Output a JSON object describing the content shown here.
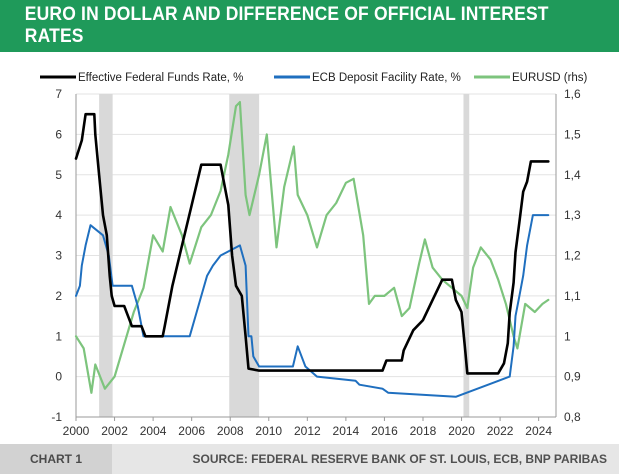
{
  "header": {
    "title": "EURO IN DOLLAR AND DIFFERENCE OF OFFICIAL INTEREST RATES"
  },
  "footer": {
    "label": "CHART 1",
    "source": "SOURCE: FEDERAL RESERVE BANK OF ST. LOUIS, ECB, BNP PARIBAS"
  },
  "colors": {
    "fed": "#000000",
    "ecb": "#1f6fbf",
    "eurusd": "#7dc47d",
    "recession": "#d9d9d9",
    "header_bg": "#1f9a5a"
  },
  "chart_data": {
    "type": "line",
    "title": "EURO IN DOLLAR AND DIFFERENCE OF OFFICIAL INTEREST RATES",
    "xlim": [
      2000,
      2024.9
    ],
    "ylim": [
      -1,
      7
    ],
    "y2lim": [
      0.8,
      1.6
    ],
    "x_ticks": [
      2000,
      2002,
      2004,
      2006,
      2008,
      2010,
      2012,
      2014,
      2016,
      2018,
      2020,
      2022,
      2024
    ],
    "x_tick_labels": [
      "2000",
      "2002",
      "2004",
      "2006",
      "2008",
      "2010",
      "2012",
      "2014",
      "2016",
      "2018",
      "2020",
      "2022",
      "2024"
    ],
    "y_ticks": [
      -1,
      0,
      1,
      2,
      3,
      4,
      5,
      6,
      7
    ],
    "y_tick_labels": [
      "-1",
      "0",
      "1",
      "2",
      "3",
      "4",
      "5",
      "6",
      "7"
    ],
    "y2_ticks": [
      0.8,
      0.9,
      1.0,
      1.1,
      1.2,
      1.3,
      1.4,
      1.5,
      1.6
    ],
    "y2_tick_labels": [
      "0,8",
      "0,9",
      "1",
      "1,1",
      "1,2",
      "1,3",
      "1,4",
      "1,5",
      "1,6"
    ],
    "legend_position": "top",
    "recessions": [
      [
        2001.2,
        2001.9
      ],
      [
        2007.95,
        2009.5
      ],
      [
        2020.1,
        2020.4
      ]
    ],
    "series": [
      {
        "name": "Effective Federal Funds Rate, %",
        "axis": "left",
        "x": [
          2000.0,
          2000.3,
          2000.5,
          2000.95,
          2001.0,
          2001.2,
          2001.4,
          2001.6,
          2001.75,
          2001.85,
          2002.0,
          2002.5,
          2002.9,
          2003.4,
          2003.6,
          2004.0,
          2004.5,
          2004.6,
          2005.0,
          2005.5,
          2006.0,
          2006.5,
          2007.0,
          2007.5,
          2007.7,
          2007.9,
          2008.1,
          2008.3,
          2008.6,
          2008.8,
          2008.95,
          2009.5,
          2015.9,
          2016.1,
          2016.9,
          2017.0,
          2017.5,
          2018.0,
          2018.5,
          2019.0,
          2019.5,
          2019.7,
          2020.0,
          2020.2,
          2020.3,
          2021.9,
          2022.2,
          2022.4,
          2022.5,
          2022.7,
          2022.8,
          2023.0,
          2023.2,
          2023.4,
          2023.6,
          2024.5
        ],
        "values": [
          5.4,
          5.85,
          6.5,
          6.5,
          6.0,
          5.0,
          4.0,
          3.5,
          2.5,
          2.0,
          1.75,
          1.75,
          1.25,
          1.25,
          1.0,
          1.0,
          1.0,
          1.25,
          2.25,
          3.25,
          4.25,
          5.25,
          5.25,
          5.25,
          4.75,
          4.25,
          3.0,
          2.25,
          2.0,
          1.0,
          0.2,
          0.15,
          0.15,
          0.4,
          0.4,
          0.65,
          1.15,
          1.4,
          1.9,
          2.4,
          2.4,
          1.9,
          1.6,
          0.6,
          0.08,
          0.08,
          0.33,
          0.83,
          1.58,
          2.33,
          3.08,
          3.83,
          4.58,
          4.83,
          5.33,
          5.33
        ]
      },
      {
        "name": "ECB Deposit Facility Rate, %",
        "axis": "left",
        "x": [
          2000.0,
          2000.2,
          2000.3,
          2000.5,
          2000.75,
          2001.4,
          2001.7,
          2001.9,
          2002.9,
          2003.2,
          2003.5,
          2005.9,
          2006.2,
          2006.5,
          2006.8,
          2007.1,
          2007.5,
          2008.5,
          2008.8,
          2008.95,
          2009.1,
          2009.2,
          2009.5,
          2011.25,
          2011.5,
          2011.9,
          2012.5,
          2014.5,
          2014.7,
          2015.9,
          2016.2,
          2019.7,
          2022.5,
          2022.7,
          2022.8,
          2023.0,
          2023.2,
          2023.4,
          2023.7,
          2024.5
        ],
        "values": [
          2.0,
          2.25,
          2.75,
          3.25,
          3.75,
          3.5,
          3.0,
          2.25,
          2.25,
          1.75,
          1.0,
          1.0,
          1.5,
          2.0,
          2.5,
          2.75,
          3.0,
          3.25,
          2.75,
          1.0,
          1.0,
          0.5,
          0.25,
          0.25,
          0.75,
          0.25,
          0.0,
          -0.1,
          -0.2,
          -0.3,
          -0.4,
          -0.5,
          0.0,
          0.75,
          1.5,
          2.0,
          2.5,
          3.25,
          4.0,
          4.0
        ]
      },
      {
        "name": "EURUSD (rhs)",
        "axis": "right",
        "x": [
          2000.0,
          2000.4,
          2000.8,
          2001.0,
          2001.5,
          2002.0,
          2002.5,
          2003.0,
          2003.5,
          2004.0,
          2004.5,
          2004.9,
          2005.5,
          2005.9,
          2006.5,
          2007.0,
          2007.5,
          2007.9,
          2008.3,
          2008.5,
          2008.8,
          2009.0,
          2009.5,
          2009.9,
          2010.4,
          2010.8,
          2011.3,
          2011.5,
          2012.0,
          2012.5,
          2013.0,
          2013.5,
          2014.0,
          2014.4,
          2014.9,
          2015.2,
          2015.5,
          2016.0,
          2016.5,
          2016.9,
          2017.3,
          2017.8,
          2018.1,
          2018.5,
          2019.0,
          2019.5,
          2020.0,
          2020.3,
          2020.6,
          2021.0,
          2021.5,
          2021.9,
          2022.3,
          2022.7,
          2022.9,
          2023.3,
          2023.8,
          2024.2,
          2024.5
        ],
        "values": [
          1.0,
          0.97,
          0.86,
          0.93,
          0.87,
          0.9,
          0.98,
          1.06,
          1.12,
          1.25,
          1.21,
          1.32,
          1.25,
          1.18,
          1.27,
          1.3,
          1.36,
          1.45,
          1.57,
          1.58,
          1.35,
          1.3,
          1.4,
          1.5,
          1.22,
          1.37,
          1.47,
          1.35,
          1.3,
          1.22,
          1.3,
          1.33,
          1.38,
          1.39,
          1.25,
          1.08,
          1.1,
          1.1,
          1.12,
          1.05,
          1.07,
          1.18,
          1.24,
          1.17,
          1.14,
          1.12,
          1.1,
          1.07,
          1.17,
          1.22,
          1.19,
          1.14,
          1.08,
          1.0,
          0.97,
          1.08,
          1.06,
          1.08,
          1.09
        ]
      }
    ]
  }
}
